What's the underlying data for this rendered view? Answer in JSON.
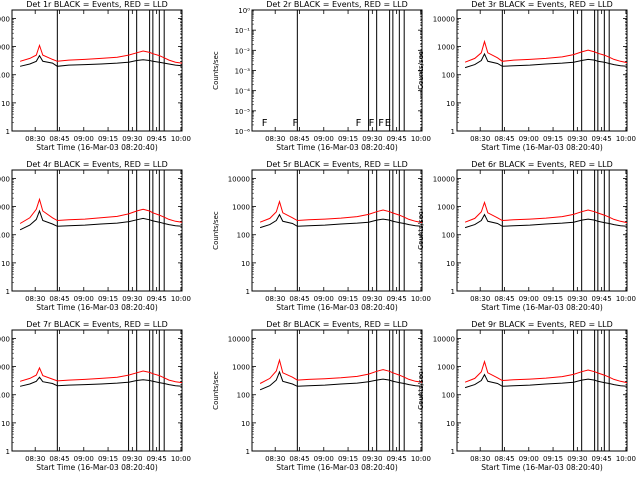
{
  "figure": {
    "title_events_word": "Events",
    "xlabel": "Start Time (16-Mar-03 08:20:40)",
    "ylabel": "Counts/sec",
    "x_ticks": [
      "08:30",
      "08:45",
      "09:00",
      "09:15",
      "09:30",
      "09:45",
      "10:00"
    ],
    "y_ticks_count": [
      "1",
      "10",
      "100",
      "1000",
      "10000"
    ],
    "y_ticks_det2": [
      "10⁻⁶",
      "10⁻⁵",
      "10⁻⁴",
      "10⁻³",
      "10⁻²",
      "10⁻¹",
      "10⁰"
    ],
    "colors": {
      "events": "#000000",
      "lld": "#ff0000"
    }
  },
  "chart_data": [
    {
      "type": "line",
      "panel": "Det 1",
      "title": "Det 1r BLACK = Events, RED = LLD",
      "xlabel": "Start Time (16-Mar-03 08:20:40)",
      "ylabel": "Counts/sec",
      "x_ticks": [
        "08:30",
        "08:45",
        "09:00",
        "09:15",
        "09:30",
        "09:45",
        "10:00"
      ],
      "yscale": "log",
      "ylim": [
        1,
        20000
      ],
      "x_minutes_range": [
        0,
        100
      ],
      "vertical_lines_at_minutes": [
        23,
        67,
        72,
        80,
        82,
        86,
        89
      ],
      "series": [
        {
          "color": "#000000",
          "x": [
            0,
            6,
            10,
            12,
            14,
            20,
            23,
            30,
            40,
            50,
            60,
            67,
            72,
            76,
            80,
            82,
            86,
            89,
            92,
            96,
            100
          ],
          "y": [
            200,
            240,
            300,
            480,
            300,
            260,
            200,
            220,
            230,
            240,
            260,
            280,
            320,
            340,
            320,
            300,
            280,
            260,
            240,
            220,
            210
          ]
        },
        {
          "color": "#ff0000",
          "x": [
            0,
            6,
            10,
            12,
            14,
            20,
            23,
            30,
            40,
            50,
            60,
            67,
            72,
            76,
            80,
            82,
            86,
            89,
            92,
            96,
            100
          ],
          "y": [
            300,
            380,
            500,
            1100,
            500,
            350,
            300,
            330,
            350,
            380,
            420,
            500,
            600,
            700,
            620,
            560,
            480,
            400,
            330,
            280,
            260
          ]
        }
      ],
      "markers": []
    },
    {
      "type": "line",
      "panel": "Det 2",
      "title": "Det 2r BLACK = Events, RED = LLD",
      "xlabel": "Start Time (16-Mar-03 08:20:40)",
      "ylabel": "Counts/sec",
      "x_ticks": [
        "08:30",
        "08:45",
        "09:00",
        "09:15",
        "09:30",
        "09:45",
        "10:00"
      ],
      "yscale": "log",
      "ylim": [
        1e-06,
        1
      ],
      "x_minutes_range": [
        0,
        100
      ],
      "vertical_lines_at_minutes": [
        23,
        67,
        72,
        80,
        82,
        86,
        89
      ],
      "series": [],
      "markers": [
        {
          "text": "F",
          "x": 1
        },
        {
          "text": "F",
          "x": 20
        },
        {
          "text": "F",
          "x": 59
        },
        {
          "text": "F",
          "x": 67
        },
        {
          "text": "F",
          "x": 73
        },
        {
          "text": "E",
          "x": 77
        }
      ]
    },
    {
      "type": "line",
      "panel": "Det 3",
      "title": "Det 3r BLACK = Events, RED = LLD",
      "xlabel": "Start Time (16-Mar-03 08:20:40)",
      "ylabel": "Counts/sec",
      "x_ticks": [
        "08:30",
        "08:45",
        "09:00",
        "09:15",
        "09:30",
        "09:45",
        "10:00"
      ],
      "yscale": "log",
      "ylim": [
        1,
        20000
      ],
      "x_minutes_range": [
        0,
        100
      ],
      "vertical_lines_at_minutes": [
        23,
        67,
        72,
        80,
        82,
        86,
        89
      ],
      "series": [
        {
          "color": "#000000",
          "x": [
            0,
            6,
            10,
            12,
            14,
            20,
            23,
            30,
            40,
            50,
            60,
            67,
            72,
            76,
            80,
            82,
            86,
            89,
            92,
            96,
            100
          ],
          "y": [
            180,
            230,
            320,
            550,
            300,
            250,
            200,
            210,
            220,
            240,
            260,
            280,
            320,
            350,
            330,
            300,
            280,
            250,
            230,
            210,
            200
          ]
        },
        {
          "color": "#ff0000",
          "x": [
            0,
            6,
            10,
            12,
            14,
            20,
            23,
            30,
            40,
            50,
            60,
            67,
            72,
            76,
            80,
            82,
            86,
            89,
            92,
            96,
            100
          ],
          "y": [
            280,
            380,
            600,
            1500,
            600,
            400,
            300,
            330,
            350,
            380,
            430,
            520,
            650,
            750,
            650,
            580,
            500,
            420,
            350,
            300,
            270
          ]
        }
      ],
      "markers": []
    },
    {
      "type": "line",
      "panel": "Det 4",
      "title": "Det 4r BLACK = Events, RED = LLD",
      "xlabel": "Start Time (16-Mar-03 08:20:40)",
      "ylabel": "Counts/sec",
      "x_ticks": [
        "08:30",
        "08:45",
        "09:00",
        "09:15",
        "09:30",
        "09:45",
        "10:00"
      ],
      "yscale": "log",
      "ylim": [
        1,
        20000
      ],
      "x_minutes_range": [
        0,
        100
      ],
      "vertical_lines_at_minutes": [
        23,
        67,
        72,
        80,
        82,
        86,
        89
      ],
      "series": [
        {
          "color": "#000000",
          "x": [
            0,
            6,
            10,
            12,
            14,
            20,
            23,
            30,
            40,
            50,
            60,
            67,
            72,
            76,
            80,
            82,
            86,
            89,
            92,
            96,
            100
          ],
          "y": [
            150,
            220,
            350,
            700,
            320,
            240,
            200,
            210,
            220,
            240,
            260,
            290,
            340,
            380,
            340,
            310,
            280,
            250,
            230,
            210,
            200
          ]
        },
        {
          "color": "#ff0000",
          "x": [
            0,
            6,
            10,
            12,
            14,
            20,
            23,
            30,
            40,
            50,
            60,
            67,
            72,
            76,
            80,
            82,
            86,
            89,
            92,
            96,
            100
          ],
          "y": [
            250,
            400,
            800,
            1800,
            700,
            400,
            320,
            340,
            360,
            400,
            450,
            550,
            700,
            800,
            700,
            600,
            500,
            420,
            350,
            300,
            280
          ]
        }
      ],
      "markers": []
    },
    {
      "type": "line",
      "panel": "Det 5",
      "title": "Det 5r BLACK = Events, RED = LLD",
      "xlabel": "Start Time (16-Mar-03 08:20:40)",
      "ylabel": "Counts/sec",
      "x_ticks": [
        "08:30",
        "08:45",
        "09:00",
        "09:15",
        "09:30",
        "09:45",
        "10:00"
      ],
      "yscale": "log",
      "ylim": [
        1,
        20000
      ],
      "x_minutes_range": [
        0,
        100
      ],
      "vertical_lines_at_minutes": [
        23,
        67,
        72,
        80,
        82,
        86,
        89
      ],
      "series": [
        {
          "color": "#000000",
          "x": [
            0,
            6,
            10,
            12,
            14,
            20,
            23,
            30,
            40,
            50,
            60,
            67,
            72,
            76,
            80,
            82,
            86,
            89,
            92,
            96,
            100
          ],
          "y": [
            180,
            230,
            320,
            520,
            300,
            250,
            200,
            210,
            220,
            240,
            260,
            280,
            330,
            360,
            330,
            300,
            270,
            250,
            230,
            210,
            200
          ]
        },
        {
          "color": "#ff0000",
          "x": [
            0,
            6,
            10,
            12,
            14,
            20,
            23,
            30,
            40,
            50,
            60,
            67,
            72,
            76,
            80,
            82,
            86,
            89,
            92,
            96,
            100
          ],
          "y": [
            280,
            380,
            650,
            1500,
            600,
            400,
            320,
            340,
            360,
            390,
            440,
            530,
            660,
            760,
            660,
            590,
            500,
            420,
            350,
            300,
            270
          ]
        }
      ],
      "markers": []
    },
    {
      "type": "line",
      "panel": "Det 6",
      "title": "Det 6r BLACK = Events, RED = LLD",
      "xlabel": "Start Time (16-Mar-03 08:20:40)",
      "ylabel": "Counts/sec",
      "x_ticks": [
        "08:30",
        "08:45",
        "09:00",
        "09:15",
        "09:30",
        "09:45",
        "10:00"
      ],
      "yscale": "log",
      "ylim": [
        1,
        20000
      ],
      "x_minutes_range": [
        0,
        100
      ],
      "vertical_lines_at_minutes": [
        23,
        67,
        72,
        80,
        82,
        86,
        89
      ],
      "series": [
        {
          "color": "#000000",
          "x": [
            0,
            6,
            10,
            12,
            14,
            20,
            23,
            30,
            40,
            50,
            60,
            67,
            72,
            76,
            80,
            82,
            86,
            89,
            92,
            96,
            100
          ],
          "y": [
            180,
            230,
            320,
            520,
            300,
            250,
            200,
            210,
            220,
            240,
            260,
            280,
            330,
            360,
            330,
            300,
            270,
            250,
            230,
            210,
            200
          ]
        },
        {
          "color": "#ff0000",
          "x": [
            0,
            6,
            10,
            12,
            14,
            20,
            23,
            30,
            40,
            50,
            60,
            67,
            72,
            76,
            80,
            82,
            86,
            89,
            92,
            96,
            100
          ],
          "y": [
            280,
            380,
            650,
            1400,
            600,
            400,
            320,
            340,
            360,
            390,
            440,
            530,
            660,
            760,
            660,
            590,
            500,
            420,
            350,
            300,
            270
          ]
        }
      ],
      "markers": []
    },
    {
      "type": "line",
      "panel": "Det 7",
      "title": "Det 7r BLACK = Events, RED = LLD",
      "xlabel": "Start Time (16-Mar-03 08:20:40)",
      "ylabel": "Counts/sec",
      "x_ticks": [
        "08:30",
        "08:45",
        "09:00",
        "09:15",
        "09:30",
        "09:45",
        "10:00"
      ],
      "yscale": "log",
      "ylim": [
        1,
        20000
      ],
      "x_minutes_range": [
        0,
        100
      ],
      "vertical_lines_at_minutes": [
        23,
        67,
        72,
        80,
        82,
        86,
        89
      ],
      "series": [
        {
          "color": "#000000",
          "x": [
            0,
            6,
            10,
            12,
            14,
            20,
            23,
            30,
            40,
            50,
            60,
            67,
            72,
            76,
            80,
            82,
            86,
            89,
            92,
            96,
            100
          ],
          "y": [
            200,
            240,
            300,
            420,
            290,
            250,
            210,
            220,
            230,
            240,
            260,
            280,
            320,
            340,
            320,
            300,
            270,
            250,
            230,
            210,
            200
          ]
        },
        {
          "color": "#ff0000",
          "x": [
            0,
            6,
            10,
            12,
            14,
            20,
            23,
            30,
            40,
            50,
            60,
            67,
            72,
            76,
            80,
            82,
            86,
            89,
            92,
            96,
            100
          ],
          "y": [
            300,
            380,
            500,
            900,
            480,
            360,
            310,
            330,
            350,
            380,
            420,
            500,
            600,
            700,
            620,
            560,
            480,
            400,
            330,
            290,
            270
          ]
        }
      ],
      "markers": []
    },
    {
      "type": "line",
      "panel": "Det 8",
      "title": "Det 8r BLACK = Events, RED = LLD",
      "xlabel": "Start Time (16-Mar-03 08:20:40)",
      "ylabel": "Counts/sec",
      "x_ticks": [
        "08:30",
        "08:45",
        "09:00",
        "09:15",
        "09:30",
        "09:45",
        "10:00"
      ],
      "yscale": "log",
      "ylim": [
        1,
        20000
      ],
      "x_minutes_range": [
        0,
        100
      ],
      "vertical_lines_at_minutes": [
        23,
        67,
        72,
        80,
        82,
        86,
        89
      ],
      "series": [
        {
          "color": "#000000",
          "x": [
            0,
            6,
            10,
            12,
            14,
            20,
            23,
            30,
            40,
            50,
            60,
            67,
            72,
            76,
            80,
            82,
            86,
            89,
            92,
            96,
            100
          ],
          "y": [
            150,
            210,
            330,
            650,
            300,
            240,
            200,
            210,
            220,
            240,
            260,
            290,
            330,
            360,
            330,
            300,
            270,
            250,
            230,
            210,
            200
          ]
        },
        {
          "color": "#ff0000",
          "x": [
            0,
            6,
            10,
            12,
            14,
            20,
            23,
            30,
            40,
            50,
            60,
            67,
            72,
            76,
            80,
            82,
            86,
            89,
            92,
            96,
            100
          ],
          "y": [
            250,
            380,
            700,
            1700,
            600,
            420,
            330,
            350,
            370,
            400,
            450,
            540,
            680,
            780,
            680,
            600,
            500,
            420,
            350,
            300,
            280
          ]
        }
      ],
      "markers": []
    },
    {
      "type": "line",
      "panel": "Det 9",
      "title": "Det 9r BLACK = Events, RED = LLD",
      "xlabel": "Start Time (16-Mar-03 08:20:40)",
      "ylabel": "Counts/sec",
      "x_ticks": [
        "08:30",
        "08:45",
        "09:00",
        "09:15",
        "09:30",
        "09:45",
        "10:00"
      ],
      "yscale": "log",
      "ylim": [
        1,
        20000
      ],
      "x_minutes_range": [
        0,
        100
      ],
      "vertical_lines_at_minutes": [
        23,
        67,
        72,
        80,
        82,
        86,
        89
      ],
      "series": [
        {
          "color": "#000000",
          "x": [
            0,
            6,
            10,
            12,
            14,
            20,
            23,
            30,
            40,
            50,
            60,
            67,
            72,
            76,
            80,
            82,
            86,
            89,
            92,
            96,
            100
          ],
          "y": [
            180,
            230,
            320,
            520,
            300,
            250,
            200,
            210,
            220,
            240,
            260,
            280,
            330,
            360,
            330,
            300,
            270,
            250,
            230,
            210,
            200
          ]
        },
        {
          "color": "#ff0000",
          "x": [
            0,
            6,
            10,
            12,
            14,
            20,
            23,
            30,
            40,
            50,
            60,
            67,
            72,
            76,
            80,
            82,
            86,
            89,
            92,
            96,
            100
          ],
          "y": [
            280,
            380,
            650,
            1500,
            600,
            400,
            320,
            340,
            360,
            390,
            440,
            530,
            660,
            760,
            660,
            590,
            500,
            420,
            350,
            300,
            270
          ]
        }
      ],
      "markers": []
    }
  ]
}
